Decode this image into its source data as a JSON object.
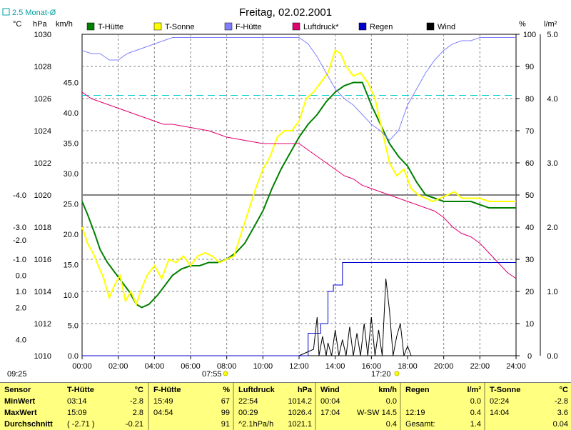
{
  "chart_data": {
    "type": "line",
    "title": "Freitag, 02.02.2001",
    "corner_label": "2.5 Monat-Ø",
    "units": {
      "temp": "°C",
      "press": "hPa",
      "wind": "km/h",
      "hum": "%",
      "rain": "l/m²"
    },
    "axes": {
      "temp_ticks": [
        "4.0",
        "2.0",
        "1.0",
        "0.0",
        "-1.0",
        "-2.0",
        "-3.0",
        "-4.0"
      ],
      "press_ticks": [
        "1030",
        "1028",
        "1026",
        "1024",
        "1022",
        "1020",
        "1018",
        "1016",
        "1014",
        "1012",
        "1010"
      ],
      "wind_ticks": [
        "45.0",
        "40.0",
        "35.0",
        "30.0",
        "25.0",
        "20.0",
        "15.0",
        "10.0",
        "5.0",
        "0.0"
      ],
      "hum_ticks": [
        "100",
        "90",
        "80",
        "70",
        "60",
        "50",
        "40",
        "30",
        "20",
        "10",
        "0"
      ],
      "rain_ticks": [
        "5.0",
        "4.0",
        "3.0",
        "2.0",
        "1.0",
        "0.0"
      ],
      "x_ticks": [
        "00:00",
        "02:00",
        "04:00",
        "06:00",
        "08:00",
        "10:00",
        "12:00",
        "14:00",
        "16:00",
        "18:00",
        "20:00",
        "22:00",
        "24:00"
      ],
      "x_range_hours": [
        0,
        24
      ],
      "hum_range": [
        0,
        100
      ],
      "grid": true
    },
    "sun_events": {
      "sunrise": "07:55",
      "sunset": "17:20",
      "left_time": "09:25"
    },
    "reference_line": {
      "name": "2.5 Monat-Ø",
      "hum_value": 81
    },
    "series": [
      {
        "name": "T-Hütte",
        "color": "#008000",
        "axis": "hum",
        "x": [
          0,
          0.3,
          0.7,
          1.0,
          1.4,
          1.8,
          2.2,
          2.6,
          3.0,
          3.3,
          3.7,
          4.2,
          4.6,
          5.0,
          5.5,
          6.0,
          6.5,
          7.0,
          7.5,
          8.0,
          8.5,
          9.0,
          9.5,
          10.0,
          10.5,
          11.0,
          11.5,
          12.0,
          12.5,
          13.0,
          13.5,
          14.0,
          14.5,
          15.0,
          15.5,
          16.0,
          16.5,
          17.0,
          17.5,
          18.0,
          18.5,
          19.0,
          19.5,
          20.0,
          20.5,
          21.0,
          21.5,
          22.0,
          22.5,
          23.0,
          23.5,
          24.0
        ],
        "y": [
          48,
          44,
          38,
          33,
          29,
          26,
          23,
          20,
          16,
          15,
          16,
          19,
          22,
          25,
          27,
          28,
          28,
          29,
          29,
          30,
          32,
          35,
          40,
          45,
          52,
          58,
          63,
          68,
          72,
          75,
          79,
          82,
          84,
          85,
          85,
          78,
          72,
          66,
          62,
          59,
          54,
          50,
          49,
          48,
          48,
          48,
          48,
          47,
          46,
          46,
          46,
          46
        ]
      },
      {
        "name": "T-Sonne",
        "color": "#ffff00",
        "axis": "hum",
        "x": [
          0,
          0.3,
          0.6,
          0.9,
          1.2,
          1.5,
          1.8,
          2.1,
          2.4,
          2.7,
          3.0,
          3.3,
          3.6,
          4.0,
          4.4,
          4.8,
          5.2,
          5.6,
          6.0,
          6.4,
          6.8,
          7.2,
          7.6,
          8.0,
          8.4,
          8.8,
          9.2,
          9.6,
          10.0,
          10.4,
          10.8,
          11.2,
          11.6,
          12.0,
          12.4,
          12.8,
          13.2,
          13.6,
          14.0,
          14.3,
          14.6,
          15.0,
          15.4,
          15.8,
          16.2,
          16.6,
          17.0,
          17.4,
          17.8,
          18.2,
          18.6,
          19.0,
          19.4,
          19.8,
          20.2,
          20.6,
          21.0,
          21.5,
          22.0,
          22.5,
          23.0,
          23.5,
          24.0
        ],
        "y": [
          40,
          35,
          32,
          28,
          24,
          18,
          22,
          25,
          17,
          20,
          16,
          21,
          25,
          28,
          24,
          30,
          29,
          31,
          28,
          31,
          32,
          31,
          29,
          30,
          31,
          38,
          45,
          52,
          58,
          62,
          68,
          70,
          70,
          73,
          80,
          82,
          85,
          88,
          95,
          94,
          90,
          87,
          88,
          85,
          80,
          70,
          60,
          56,
          58,
          52,
          50,
          49,
          48,
          49,
          50,
          51,
          49,
          49,
          49,
          48,
          48,
          48,
          48
        ]
      },
      {
        "name": "F-Hütte",
        "color": "#8080ff",
        "axis": "hum",
        "x": [
          0,
          0.5,
          1.0,
          1.5,
          2.0,
          2.5,
          3.0,
          3.5,
          4.0,
          4.5,
          5.0,
          5.5,
          6.0,
          7.0,
          8.0,
          9.0,
          10.0,
          11.0,
          12.0,
          12.5,
          13.0,
          13.5,
          14.0,
          14.5,
          15.0,
          15.5,
          16.0,
          16.5,
          17.0,
          17.5,
          18.0,
          18.5,
          19.0,
          19.5,
          20.0,
          20.5,
          21.0,
          21.5,
          22.0,
          23.0,
          24.0
        ],
        "y": [
          95,
          94,
          94,
          92,
          92,
          94,
          95,
          96,
          97,
          98,
          99,
          99,
          99,
          99,
          99,
          99,
          99,
          99,
          99,
          97,
          93,
          88,
          83,
          80,
          78,
          75,
          72,
          70,
          67,
          70,
          78,
          83,
          88,
          92,
          95,
          97,
          98,
          98,
          99,
          99,
          99
        ]
      },
      {
        "name": "Luftdruck*",
        "color": "#e00070",
        "axis": "hum",
        "x": [
          0,
          0.5,
          1.0,
          1.5,
          2.0,
          2.5,
          3.0,
          3.5,
          4.0,
          4.5,
          5.0,
          6.0,
          7.0,
          7.5,
          8.0,
          9.0,
          10.0,
          11.0,
          12.0,
          12.5,
          13.0,
          13.5,
          14.0,
          14.5,
          15.0,
          15.5,
          16.0,
          16.5,
          17.0,
          17.5,
          18.0,
          18.5,
          19.0,
          19.5,
          20.0,
          20.5,
          21.0,
          21.5,
          22.0,
          22.5,
          23.0,
          23.5,
          24.0
        ],
        "y": [
          82,
          80,
          79,
          78,
          77,
          76,
          75,
          74,
          73,
          72,
          72,
          71,
          70,
          69,
          68,
          67,
          66,
          66,
          66,
          64,
          62,
          60,
          58,
          56,
          55,
          53,
          52,
          51,
          50,
          49,
          48,
          47,
          46,
          45,
          43,
          40,
          38,
          37,
          35,
          32,
          29,
          26,
          24
        ]
      },
      {
        "name": "Regen",
        "color": "#0000cc",
        "axis": "hum",
        "x": [
          0,
          12.5,
          12.5,
          13.2,
          13.2,
          13.6,
          13.6,
          13.9,
          13.9,
          14.4,
          14.4,
          24
        ],
        "y": [
          0,
          0,
          7,
          7,
          10,
          10,
          20,
          20,
          22,
          22,
          29,
          29
        ]
      },
      {
        "name": "Wind",
        "color": "#000000",
        "axis": "hum",
        "x": [
          12,
          12.8,
          13.0,
          13.1,
          13.3,
          13.5,
          13.6,
          13.8,
          14.0,
          14.2,
          14.4,
          14.6,
          14.8,
          15.0,
          15.2,
          15.4,
          15.6,
          15.8,
          16.0,
          16.2,
          16.4,
          16.6,
          16.8,
          17.0,
          17.2,
          17.4,
          17.6,
          17.8,
          18.0,
          18.2,
          18.5
        ],
        "y": [
          0,
          2,
          12,
          0,
          6,
          0,
          4,
          0,
          8,
          0,
          5,
          0,
          9,
          0,
          7,
          0,
          10,
          0,
          12,
          0,
          8,
          0,
          24,
          14,
          0,
          6,
          10,
          0,
          3,
          0,
          0
        ]
      }
    ]
  },
  "stats": {
    "row_labels": [
      "Sensor",
      "MinWert",
      "MaxWert",
      "Durchschnitt"
    ],
    "avg_time": "09:25",
    "columns": [
      {
        "name": "T-Hütte",
        "unit": "°C",
        "min_time": "03:14",
        "min": "-2.8",
        "max_time": "15:09",
        "max": "2.8",
        "avg_extra": "( -2.71 )",
        "avg": "-0.21"
      },
      {
        "name": "F-Hütte",
        "unit": "%",
        "min_time": "15:49",
        "min": "67",
        "max_time": "04:54",
        "max": "99",
        "avg_extra": "",
        "avg": "91"
      },
      {
        "name": "Luftdruck",
        "unit": "hPa",
        "min_time": "22:54",
        "min": "1014.2",
        "max_time": "00:29",
        "max": "1026.4",
        "avg_extra": "^2.1hPa/h",
        "avg": "1021.1"
      },
      {
        "name": "Wind",
        "unit": "km/h",
        "min_time": "00:04",
        "min": "0.0",
        "max_time": "17:04",
        "max": "W-SW 14.5",
        "avg_extra": "",
        "avg": "0.4"
      },
      {
        "name": "Regen",
        "unit": "l/m²",
        "min_time": "",
        "min": "0.0",
        "max_time": "12:19",
        "max": "0.4",
        "avg_extra": "Gesamt:",
        "avg": "1.4"
      },
      {
        "name": "T-Sonne",
        "unit": "°C",
        "min_time": "02:24",
        "min": "-2.8",
        "max_time": "14:04",
        "max": "3.6",
        "avg_extra": "",
        "avg": "0.04"
      }
    ]
  }
}
